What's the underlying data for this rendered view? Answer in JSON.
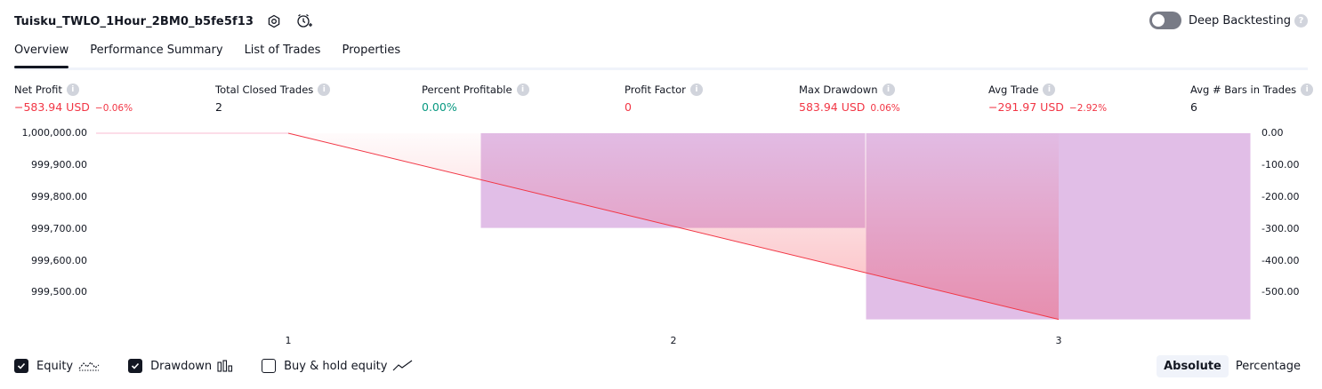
{
  "header": {
    "title": "Tuisku_TWLO_1Hour_2BM0_b5fe5f13",
    "icons": [
      "settings-icon",
      "add-alert-icon"
    ]
  },
  "deep_backtesting": {
    "label": "Deep Backtesting",
    "enabled": false,
    "help": "?"
  },
  "tabs": [
    {
      "label": "Overview",
      "active": true
    },
    {
      "label": "Performance Summary",
      "active": false
    },
    {
      "label": "List of Trades",
      "active": false
    },
    {
      "label": "Properties",
      "active": false
    }
  ],
  "metrics": {
    "net_profit": {
      "label": "Net Profit",
      "value": "−583.94 USD",
      "pct": "−0.06%"
    },
    "total_closed_trades": {
      "label": "Total Closed Trades",
      "value": "2"
    },
    "percent_profitable": {
      "label": "Percent Profitable",
      "value": "0.00%"
    },
    "profit_factor": {
      "label": "Profit Factor",
      "value": "0"
    },
    "max_drawdown": {
      "label": "Max Drawdown",
      "value": "583.94 USD",
      "pct": "0.06%"
    },
    "avg_trade": {
      "label": "Avg Trade",
      "value": "−291.97 USD",
      "pct": "−2.92%"
    },
    "avg_bars": {
      "label": "Avg # Bars in Trades",
      "value": "6"
    }
  },
  "info_mark": "i",
  "chart_data": {
    "type": "line",
    "x_ticks": [
      "1",
      "2",
      "3"
    ],
    "left_axis": {
      "ticks": [
        "1,000,000.00",
        "999,900.00",
        "999,800.00",
        "999,700.00",
        "999,600.00",
        "999,500.00"
      ],
      "range": [
        999415,
        1000000
      ]
    },
    "right_axis": {
      "ticks": [
        "0.00",
        "-100.00",
        "-200.00",
        "-300.00",
        "-400.00",
        "-500.00"
      ],
      "range": [
        -585,
        0
      ]
    },
    "equity": {
      "x": [
        0.5,
        1,
        3
      ],
      "y": [
        1000000,
        1000000,
        999416.06
      ]
    },
    "drawdown_bars": [
      {
        "x_start": 1.5,
        "x_end": 2.5,
        "value": -297.0
      },
      {
        "x_start": 2.5,
        "x_end": 3.5,
        "value": -583.94
      }
    ],
    "series": [
      {
        "name": "Equity",
        "checked": true,
        "color": "#f23645"
      },
      {
        "name": "Drawdown",
        "checked": true,
        "color": "#ce93d8"
      },
      {
        "name": "Buy & hold equity",
        "checked": false
      }
    ]
  },
  "scale_switch": {
    "options": [
      "Absolute",
      "Percentage"
    ],
    "selected": "Absolute"
  },
  "colors": {
    "loss": "#f23645",
    "profit": "#089981",
    "drawdown": "#e1bee7",
    "text": "#131722"
  }
}
